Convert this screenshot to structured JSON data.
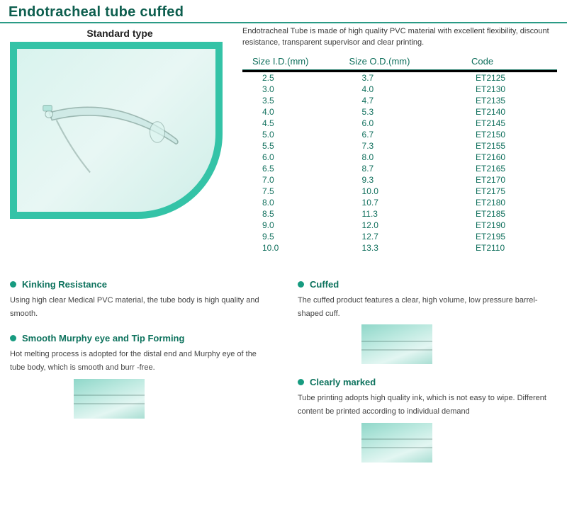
{
  "title": "Endotracheal tube cuffed",
  "subtitle": "Standard type",
  "description": "Endotracheal Tube is made of high quality PVC material with excellent flexibility, discount resistance, transparent supervisor and clear printing.",
  "colors": {
    "brand": "#0d5e4e",
    "accent": "#2a9b86",
    "teal_fill": "#34c3a7",
    "table_text": "#0f6f5c"
  },
  "table": {
    "columns": [
      "Size I.D.(mm)",
      "Size O.D.(mm)",
      "Code"
    ],
    "rows": [
      [
        "2.5",
        "3.7",
        "ET2125"
      ],
      [
        "3.0",
        "4.0",
        "ET2130"
      ],
      [
        "3.5",
        "4.7",
        "ET2135"
      ],
      [
        "4.0",
        "5.3",
        "ET2140"
      ],
      [
        "4.5",
        "6.0",
        "ET2145"
      ],
      [
        "5.0",
        "6.7",
        "ET2150"
      ],
      [
        "5.5",
        "7.3",
        "ET2155"
      ],
      [
        "6.0",
        "8.0",
        "ET2160"
      ],
      [
        "6.5",
        "8.7",
        "ET2165"
      ],
      [
        "7.0",
        "9.3",
        "ET2170"
      ],
      [
        "7.5",
        "10.0",
        "ET2175"
      ],
      [
        "8.0",
        "10.7",
        "ET2180"
      ],
      [
        "8.5",
        "11.3",
        "ET2185"
      ],
      [
        "9.0",
        "12.0",
        "ET2190"
      ],
      [
        "9.5",
        "12.7",
        "ET2195"
      ],
      [
        "10.0",
        "13.3",
        "ET2110"
      ]
    ]
  },
  "features": {
    "left": [
      {
        "title": "Kinking Resistance",
        "desc": "Using high clear Medical PVC material, the tube body is high quality and smooth.",
        "thumb": false
      },
      {
        "title": "Smooth Murphy eye and Tip Forming",
        "desc": "Hot melting process is adopted for the distal end and Murphy eye of the tube body, which is smooth and burr -free.",
        "thumb": true
      }
    ],
    "right": [
      {
        "title": "Cuffed",
        "desc": "The cuffed product features a clear, high volume, low pressure barrel-shaped cuff.",
        "thumb": true
      },
      {
        "title": "Clearly marked",
        "desc": "Tube printing adopts high quality ink, which is not easy to wipe. Different content be printed according to individual demand",
        "thumb": true
      }
    ]
  }
}
